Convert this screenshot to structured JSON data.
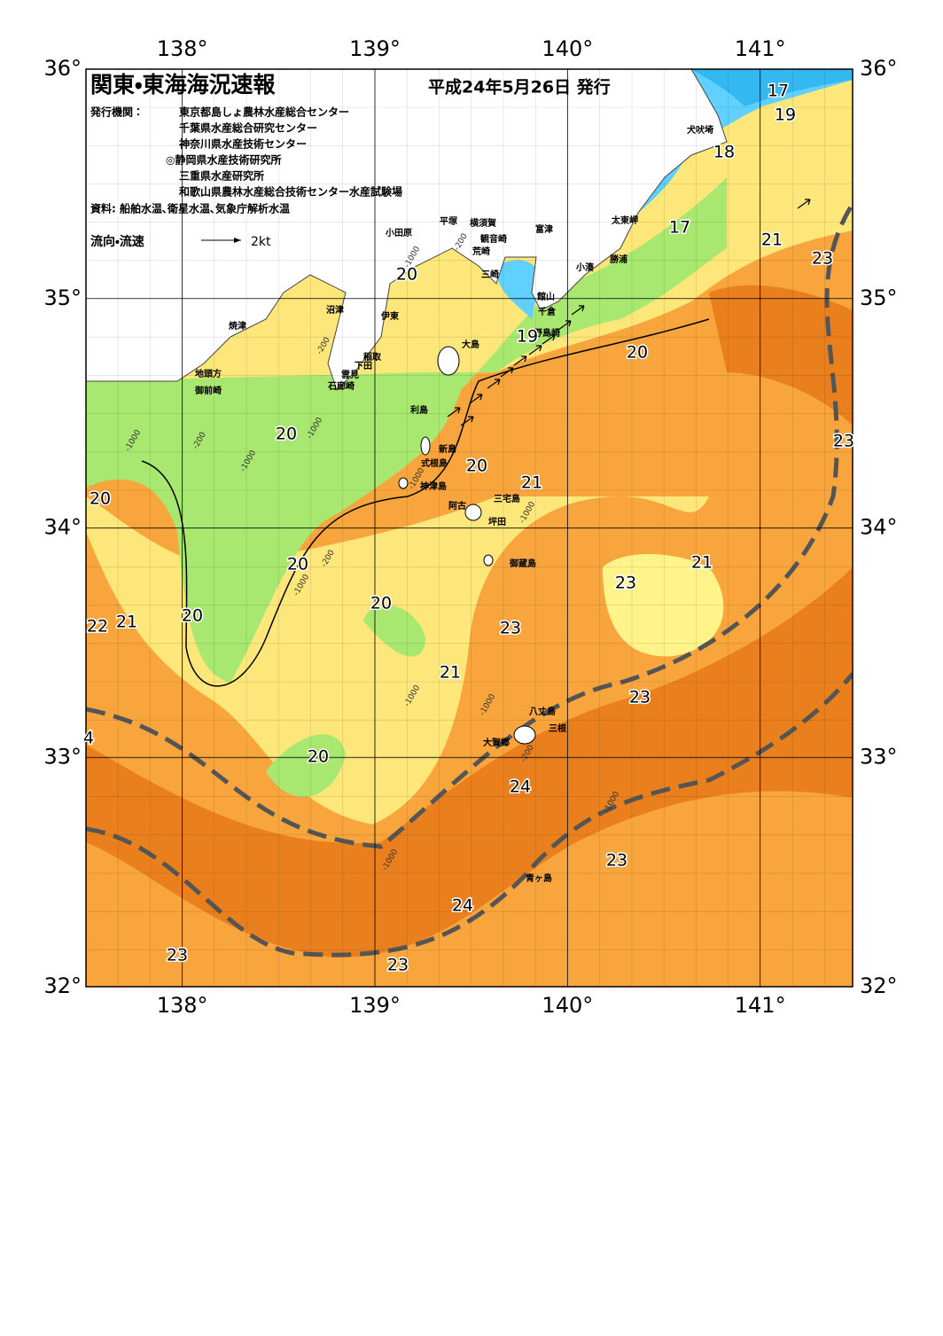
{
  "header": {
    "title": "関東・東海海況速報",
    "date": "平成24年5月26日 発行",
    "issuer_label": "発行機関：",
    "issuers": [
      "東京都島しょ農林水産総合センター",
      "千葉県水産総合研究センター",
      "神奈川県水産技術センター",
      "◎静岡県水産技術研究所",
      "三重県水産研究所",
      "和歌山県農林水産総合技術センター水産試験場"
    ],
    "source": "資料: 船舶水温､衛星水温､気象庁解析水温",
    "legend_label": "流向・流速",
    "legend_speed": "2kt"
  },
  "map": {
    "xlim": [
      137.5,
      141.48
    ],
    "ylim": [
      32,
      36.0
    ],
    "lon_ticks": [
      {
        "value": 138,
        "label": "138°"
      },
      {
        "value": 139,
        "label": "139°"
      },
      {
        "value": 140,
        "label": "140°"
      },
      {
        "value": 141,
        "label": "141°"
      }
    ],
    "lat_ticks": [
      {
        "value": 36,
        "label": "36°"
      },
      {
        "value": 35,
        "label": "35°"
      },
      {
        "value": 34,
        "label": "34°"
      },
      {
        "value": 33,
        "label": "33°"
      },
      {
        "value": 32,
        "label": "32°"
      }
    ],
    "place_names": [
      "犬吠埼",
      "太東岬",
      "勝浦",
      "小湊",
      "館山",
      "千倉",
      "野島崎",
      "富津",
      "観音崎",
      "荒崎",
      "横須賀",
      "平塚",
      "小田原",
      "三崎",
      "大島",
      "沼津",
      "伊東",
      "焼津",
      "稲取",
      "下田",
      "雲見",
      "石廊崎",
      "地頭方",
      "御前崎",
      "利島",
      "新島",
      "式根島",
      "神津島",
      "三宅島",
      "阿古",
      "坪田",
      "御蔵島",
      "八丈島",
      "三根",
      "大賀郷",
      "青ヶ島"
    ],
    "isotherm_labels": [
      "17",
      "19",
      "18",
      "17",
      "21",
      "23",
      "20",
      "19",
      "20",
      "20",
      "23",
      "20",
      "21",
      "20",
      "20",
      "21",
      "23",
      "20",
      "20",
      "21",
      "22",
      "23",
      "21",
      "23",
      "20",
      "24",
      "23",
      "24",
      "23",
      "23",
      "4"
    ],
    "depth_labels": [
      "-1000",
      "-200",
      "-1000",
      "-200",
      "-1000",
      "-200",
      "-1000",
      "-1000",
      "-200",
      "-1000",
      "-1000",
      "-1000",
      "-1000",
      "-200",
      "-1000",
      "-1000"
    ]
  }
}
